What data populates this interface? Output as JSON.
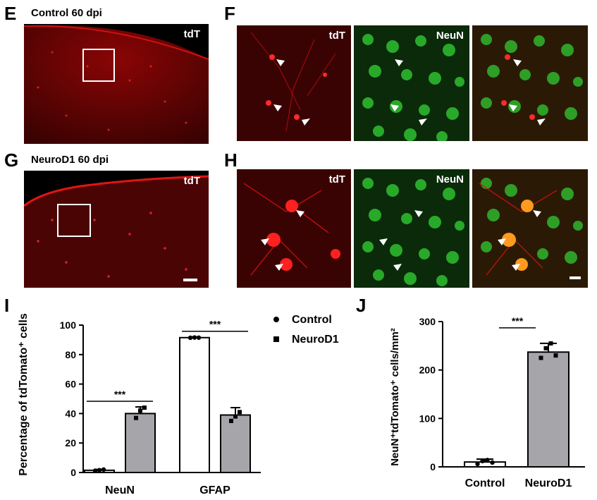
{
  "panels": {
    "E": {
      "letter": "E",
      "title": "Control  60 dpi",
      "channel": "tdT"
    },
    "F": {
      "letter": "F",
      "channels": [
        "tdT",
        "NeuN",
        ""
      ]
    },
    "G": {
      "letter": "G",
      "title": "NeuroD1  60 dpi",
      "channel": "tdT"
    },
    "H": {
      "letter": "H",
      "channels": [
        "tdT",
        "NeuN",
        ""
      ]
    },
    "I": {
      "letter": "I"
    },
    "J": {
      "letter": "J"
    }
  },
  "colors": {
    "tdTomato_red": "#e01010",
    "neun_green": "#2fc02f",
    "control_bar": "#ffffff",
    "neurod1_bar": "#a6a6aa"
  },
  "chart_data": [
    {
      "type": "bar",
      "panel": "I",
      "ylabel": "Percentage of tdTomato⁺ cells",
      "categories": [
        "NeuN",
        "GFAP"
      ],
      "ylim": [
        0,
        100
      ],
      "yticks": [
        0,
        20,
        40,
        60,
        80,
        100
      ],
      "legend": {
        "placement": "top-right",
        "entries": [
          "Control",
          "NeuroD1"
        ]
      },
      "series": [
        {
          "name": "Control",
          "values": [
            1.5,
            91.5
          ],
          "errors": [
            0.6,
            0.5
          ],
          "points": [
            [
              1.2,
              1.6,
              2.0
            ],
            [
              91.4,
              91.6,
              91.5
            ]
          ]
        },
        {
          "name": "NeuroD1",
          "values": [
            40,
            39
          ],
          "errors": [
            4.5,
            5
          ],
          "points": [
            [
              37,
              42,
              44
            ],
            [
              35,
              38,
              41
            ]
          ]
        }
      ],
      "significance": [
        {
          "category": "NeuN",
          "label": "***"
        },
        {
          "category": "GFAP",
          "label": "***"
        }
      ]
    },
    {
      "type": "bar",
      "panel": "J",
      "ylabel": "NeuN⁺tdTomato⁺ cells/mm²",
      "categories": [
        "Control",
        "NeuroD1"
      ],
      "ylim": [
        0,
        300
      ],
      "yticks": [
        0,
        100,
        200,
        300
      ],
      "values": [
        10,
        237
      ],
      "errors": [
        6,
        18
      ],
      "points": [
        [
          6,
          12,
          14,
          9
        ],
        [
          225,
          245,
          255,
          230
        ]
      ],
      "significance": [
        {
          "between": [
            "Control",
            "NeuroD1"
          ],
          "label": "***"
        }
      ]
    }
  ]
}
